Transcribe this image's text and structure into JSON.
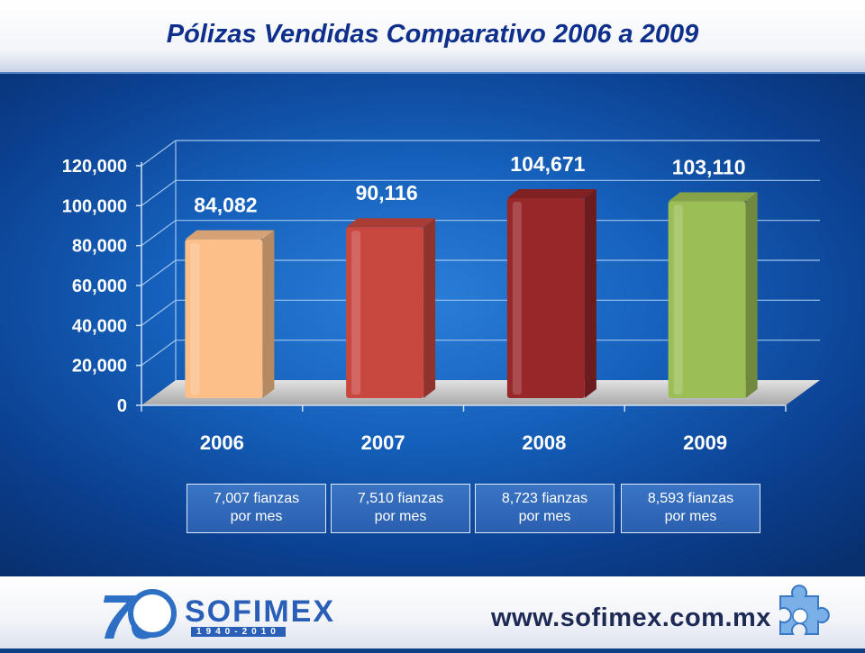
{
  "chart_data": {
    "type": "bar",
    "title": "Pólizas Vendidas Comparativo 2006 a  2009",
    "categories": [
      "2006",
      "2007",
      "2008",
      "2009"
    ],
    "values": [
      84082,
      90116,
      104671,
      103110
    ],
    "value_labels": [
      "84,082",
      "90,116",
      "104,671",
      "103,110"
    ],
    "bar_colors": [
      "#fcbf8a",
      "#c8473f",
      "#98272a",
      "#9cbe56"
    ],
    "ylim": [
      0,
      120000
    ],
    "yticks": [
      0,
      20000,
      40000,
      60000,
      80000,
      100000,
      120000
    ],
    "ytick_labels": [
      "0",
      "20,000",
      "40,000",
      "60,000",
      "80,000",
      "100,000",
      "120,000"
    ],
    "grid": true,
    "legend": "none"
  },
  "notes": [
    {
      "line1": "7,007  fianzas",
      "line2": "por mes"
    },
    {
      "line1": "7,510 fianzas",
      "line2": "por mes"
    },
    {
      "line1": "8,723 fianzas",
      "line2": "por mes"
    },
    {
      "line1": "8,593  fianzas",
      "line2": "por mes"
    }
  ],
  "footer": {
    "logo_number": "70",
    "logo_name": "SOFIMEX",
    "logo_years": "1940-2010",
    "url": "www.sofimex.com.mx",
    "puzzle_icon": "puzzle-piece-icon"
  }
}
